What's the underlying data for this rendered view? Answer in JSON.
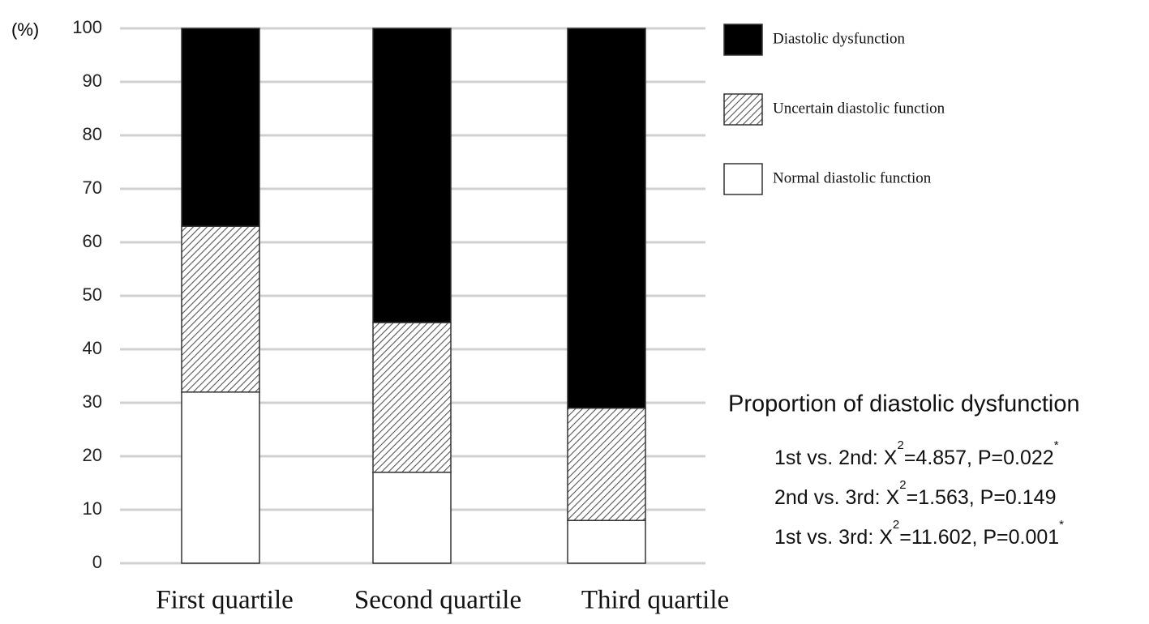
{
  "chart_data": {
    "type": "stacked_bar",
    "y_axis_label": "(%)",
    "categories": [
      "First quartile",
      "Second quartile",
      "Third quartile"
    ],
    "series": [
      {
        "name": "Normal diastolic function",
        "color": "#ffffff",
        "values": [
          32,
          17,
          8
        ]
      },
      {
        "name": "Uncertain diastolic function",
        "color": "#555555",
        "pattern": "hatch",
        "values": [
          31,
          28,
          21
        ]
      },
      {
        "name": "Diastolic dysfunction",
        "color": "#000000",
        "values": [
          37,
          55,
          71
        ]
      }
    ],
    "ylim": [
      0,
      100
    ],
    "yticks": [
      0,
      10,
      20,
      30,
      40,
      50,
      60,
      70,
      80,
      90,
      100
    ],
    "grid": true,
    "legend": "top-right",
    "annotation": {
      "title": "Proportion of diastolic dysfunction",
      "lines": [
        {
          "prefix": "1st  vs.  2nd:  X",
          "sup": "2",
          "suffix": "=4.857, P=0.022",
          "mark": "*"
        },
        {
          "prefix": "2nd  vs.  3rd:  X",
          "sup": "2",
          "suffix": "=1.563, P=0.149"
        },
        {
          "prefix": "1st  vs.  3rd:  X",
          "sup": "2",
          "suffix": "=11.602, P=0.001",
          "mark": "*"
        }
      ]
    }
  }
}
